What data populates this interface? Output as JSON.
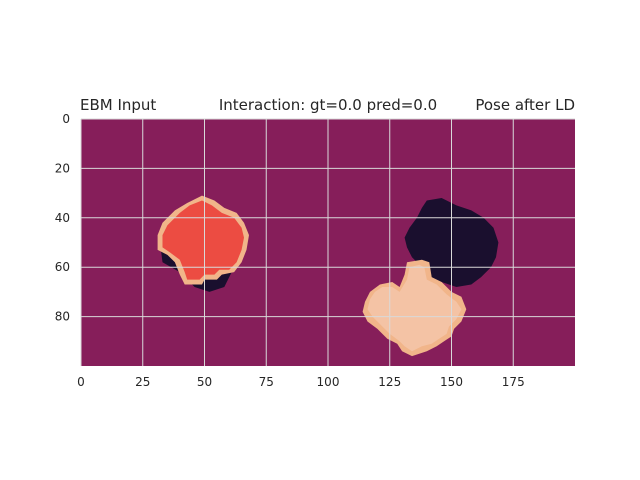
{
  "figure": {
    "title_left": "EBM Input",
    "title_center": "Interaction: gt=0.0 pred=0.0",
    "title_right": "Pose after LD"
  },
  "chart_data": {
    "type": "heatmap",
    "title": "Interaction: gt=0.0 pred=0.0",
    "xlabel": "",
    "ylabel": "",
    "xlim": [
      0,
      200
    ],
    "ylim": [
      100,
      0
    ],
    "xticks": [
      0,
      25,
      50,
      75,
      100,
      125,
      150,
      175
    ],
    "yticks": [
      0,
      20,
      40,
      60,
      80
    ],
    "grid": true,
    "colors": {
      "background": "#861E5A",
      "receptor_shape": "#1A0F2E",
      "ligand_input": "#EC4C42",
      "ligand_pose": "#F4C3A5",
      "ligand_edge": "#F1B58A",
      "grid": "#d9d9d9"
    },
    "regions": [
      {
        "name": "left receptor shadow",
        "color_key": "receptor_shape",
        "polygon": [
          [
            46,
            34
          ],
          [
            52,
            34
          ],
          [
            56,
            38
          ],
          [
            60,
            48
          ],
          [
            62,
            60
          ],
          [
            58,
            68
          ],
          [
            52,
            70
          ],
          [
            46,
            68
          ],
          [
            40,
            62
          ],
          [
            33,
            58
          ],
          [
            32,
            50
          ],
          [
            34,
            44
          ],
          [
            38,
            38
          ],
          [
            42,
            35
          ]
        ]
      },
      {
        "name": "left ligand edge",
        "color_key": "ligand_edge",
        "polygon": [
          [
            38,
            37
          ],
          [
            43,
            34
          ],
          [
            49,
            31
          ],
          [
            54,
            33
          ],
          [
            58,
            36
          ],
          [
            63,
            38
          ],
          [
            66,
            42
          ],
          [
            68,
            47
          ],
          [
            67,
            53
          ],
          [
            65,
            58
          ],
          [
            62,
            62
          ],
          [
            57,
            63
          ],
          [
            55,
            65
          ],
          [
            50,
            65
          ],
          [
            49,
            67
          ],
          [
            42,
            67
          ],
          [
            40,
            63
          ],
          [
            38,
            58
          ],
          [
            35,
            55
          ],
          [
            31,
            53
          ],
          [
            31,
            47
          ],
          [
            33,
            42
          ]
        ]
      },
      {
        "name": "left ligand",
        "color_key": "ligand_input",
        "polygon": [
          [
            40,
            38
          ],
          [
            44,
            35
          ],
          [
            49,
            33
          ],
          [
            53,
            35
          ],
          [
            57,
            38
          ],
          [
            62,
            40
          ],
          [
            65,
            44
          ],
          [
            66,
            48
          ],
          [
            65,
            53
          ],
          [
            63,
            58
          ],
          [
            60,
            61
          ],
          [
            56,
            61
          ],
          [
            54,
            63
          ],
          [
            50,
            63
          ],
          [
            48,
            65
          ],
          [
            43,
            65
          ],
          [
            42,
            62
          ],
          [
            40,
            57
          ],
          [
            36,
            54
          ],
          [
            33,
            52
          ],
          [
            33,
            47
          ],
          [
            35,
            43
          ]
        ]
      },
      {
        "name": "right receptor",
        "color_key": "receptor_shape",
        "polygon": [
          [
            140,
            33
          ],
          [
            146,
            32
          ],
          [
            152,
            35
          ],
          [
            158,
            37
          ],
          [
            163,
            40
          ],
          [
            167,
            44
          ],
          [
            169,
            50
          ],
          [
            168,
            56
          ],
          [
            166,
            60
          ],
          [
            162,
            64
          ],
          [
            158,
            67
          ],
          [
            152,
            68
          ],
          [
            146,
            66
          ],
          [
            141,
            64
          ],
          [
            138,
            60
          ],
          [
            134,
            56
          ],
          [
            132,
            52
          ],
          [
            131,
            48
          ],
          [
            133,
            44
          ],
          [
            136,
            40
          ],
          [
            138,
            36
          ]
        ]
      },
      {
        "name": "right ligand edge",
        "color_key": "ligand_edge",
        "polygon": [
          [
            132,
            58
          ],
          [
            138,
            57
          ],
          [
            141,
            58
          ],
          [
            142,
            64
          ],
          [
            146,
            66
          ],
          [
            150,
            70
          ],
          [
            154,
            72
          ],
          [
            156,
            77
          ],
          [
            154,
            82
          ],
          [
            151,
            85
          ],
          [
            150,
            88
          ],
          [
            147,
            90
          ],
          [
            144,
            92
          ],
          [
            140,
            94
          ],
          [
            134,
            96
          ],
          [
            130,
            94
          ],
          [
            128,
            91
          ],
          [
            124,
            89
          ],
          [
            120,
            85
          ],
          [
            116,
            82
          ],
          [
            114,
            78
          ],
          [
            115,
            74
          ],
          [
            117,
            70
          ],
          [
            121,
            67
          ],
          [
            126,
            66
          ],
          [
            129,
            68
          ],
          [
            131,
            63
          ]
        ]
      },
      {
        "name": "right ligand",
        "color_key": "ligand_pose",
        "polygon": [
          [
            133,
            60
          ],
          [
            137,
            59
          ],
          [
            139,
            60
          ],
          [
            140,
            65
          ],
          [
            144,
            67
          ],
          [
            148,
            71
          ],
          [
            152,
            74
          ],
          [
            154,
            77
          ],
          [
            152,
            81
          ],
          [
            149,
            84
          ],
          [
            148,
            87
          ],
          [
            145,
            89
          ],
          [
            142,
            91
          ],
          [
            138,
            92
          ],
          [
            134,
            94
          ],
          [
            131,
            92
          ],
          [
            129,
            90
          ],
          [
            125,
            87
          ],
          [
            121,
            83
          ],
          [
            118,
            80
          ],
          [
            116,
            77
          ],
          [
            117,
            73
          ],
          [
            119,
            70
          ],
          [
            122,
            68
          ],
          [
            126,
            68
          ],
          [
            129,
            70
          ],
          [
            132,
            65
          ]
        ]
      }
    ]
  }
}
